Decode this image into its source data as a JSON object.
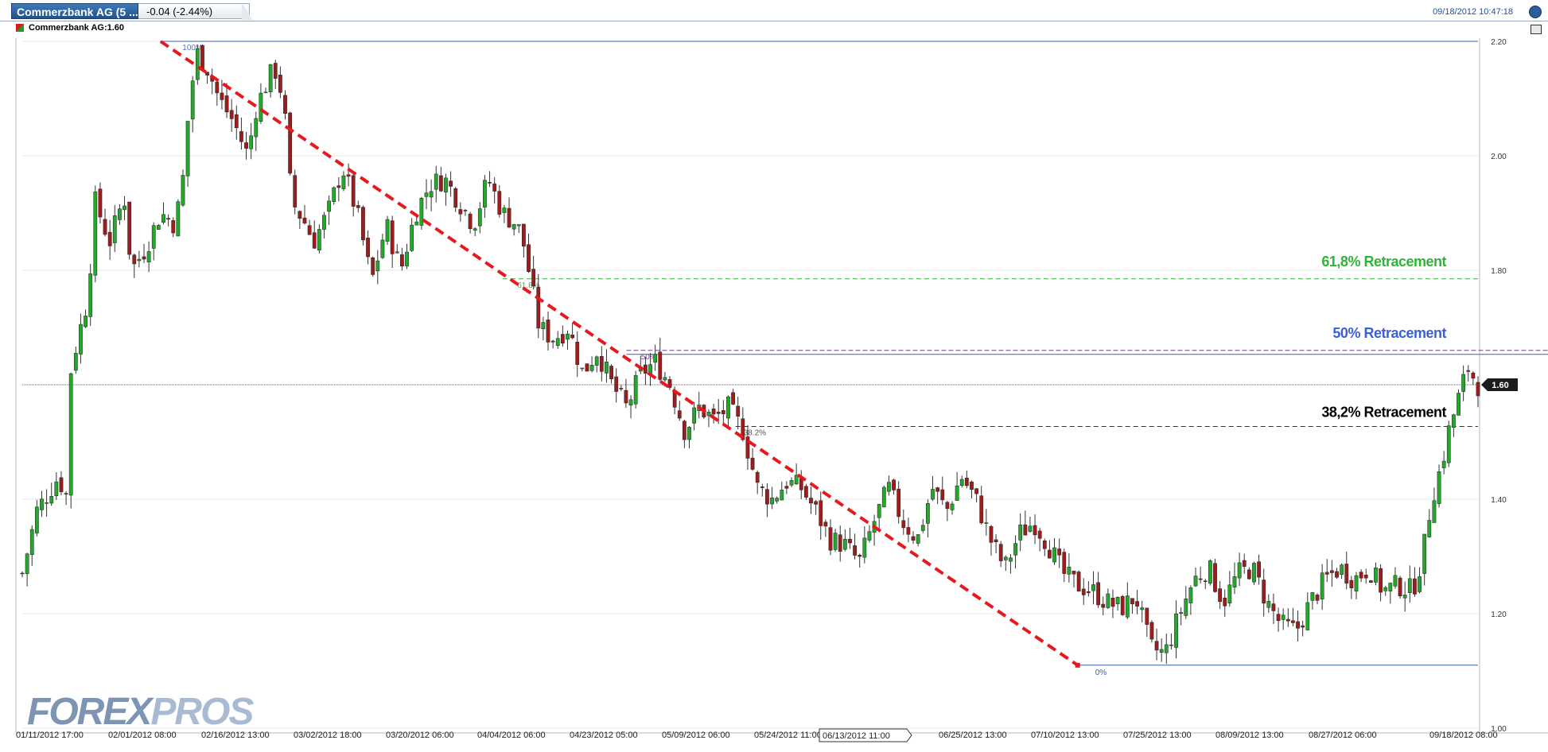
{
  "header": {
    "tab_title": "Commerzbank AG (5 ...",
    "change": "-0.04 (-2.44%)",
    "timestamp": "09/18/2012 10:47:18",
    "legend": "Commerzbank AG:1.60"
  },
  "watermark": {
    "part1": "FOREX",
    "part2": "PROS"
  },
  "colors": {
    "up": "#22a82a",
    "down": "#9e1c1c",
    "trendline": "#e8191e",
    "fib_618": "#2fb43a",
    "fib_50": "#3b5fd9",
    "fib_382": "#000000"
  },
  "chart_data": {
    "type": "candlestick",
    "title": "",
    "ylim": [
      1.0,
      2.2
    ],
    "yticks": [
      1.0,
      1.2,
      1.4,
      1.6,
      1.8,
      2.0,
      2.2
    ],
    "ytick_labels": [
      "1.00",
      "1.20",
      "1.40",
      "1.60",
      "1.80",
      "2.00",
      "2.20"
    ],
    "xtick_labels": [
      "01/11/2012 17:00",
      "02/01/2012 08:00",
      "02/16/2012 13:00",
      "03/02/2012 18:00",
      "03/20/2012 06:00",
      "04/04/2012 06:00",
      "04/23/2012 05:00",
      "05/09/2012 06:00",
      "05/24/2012 11:00",
      "06/13/2012 11:00",
      "06/25/2012 13:00",
      "07/10/2012 13:00",
      "07/25/2012 13:00",
      "08/09/2012 13:00",
      "08/27/2012 06:00",
      "09/18/2012 08:00"
    ],
    "crosshair_x_label": "06/13/2012 11:00",
    "last_price": 1.6,
    "last_price_label": "1.60",
    "close_path": [
      {
        "t": 0.0,
        "v": 1.27
      },
      {
        "t": 0.01,
        "v": 1.38
      },
      {
        "t": 0.025,
        "v": 1.44
      },
      {
        "t": 0.03,
        "v": 1.4
      },
      {
        "t": 0.033,
        "v": 1.62
      },
      {
        "t": 0.038,
        "v": 1.68
      },
      {
        "t": 0.045,
        "v": 1.75
      },
      {
        "t": 0.05,
        "v": 1.92
      },
      {
        "t": 0.06,
        "v": 1.85
      },
      {
        "t": 0.07,
        "v": 1.93
      },
      {
        "t": 0.075,
        "v": 1.8
      },
      {
        "t": 0.085,
        "v": 1.84
      },
      {
        "t": 0.095,
        "v": 1.9
      },
      {
        "t": 0.105,
        "v": 1.88
      },
      {
        "t": 0.11,
        "v": 1.95
      },
      {
        "t": 0.115,
        "v": 2.1
      },
      {
        "t": 0.12,
        "v": 2.18
      },
      {
        "t": 0.128,
        "v": 2.15
      },
      {
        "t": 0.135,
        "v": 2.1
      },
      {
        "t": 0.145,
        "v": 2.06
      },
      {
        "t": 0.155,
        "v": 2.0
      },
      {
        "t": 0.16,
        "v": 2.08
      },
      {
        "t": 0.17,
        "v": 2.14
      },
      {
        "t": 0.175,
        "v": 2.15
      },
      {
        "t": 0.18,
        "v": 2.08
      },
      {
        "t": 0.185,
        "v": 1.92
      },
      {
        "t": 0.195,
        "v": 1.88
      },
      {
        "t": 0.2,
        "v": 1.85
      },
      {
        "t": 0.21,
        "v": 1.9
      },
      {
        "t": 0.22,
        "v": 1.98
      },
      {
        "t": 0.23,
        "v": 1.9
      },
      {
        "t": 0.24,
        "v": 1.78
      },
      {
        "t": 0.25,
        "v": 1.88
      },
      {
        "t": 0.26,
        "v": 1.8
      },
      {
        "t": 0.27,
        "v": 1.9
      },
      {
        "t": 0.28,
        "v": 1.95
      },
      {
        "t": 0.29,
        "v": 1.96
      },
      {
        "t": 0.3,
        "v": 1.92
      },
      {
        "t": 0.31,
        "v": 1.88
      },
      {
        "t": 0.32,
        "v": 1.96
      },
      {
        "t": 0.33,
        "v": 1.9
      },
      {
        "t": 0.34,
        "v": 1.88
      },
      {
        "t": 0.345,
        "v": 1.84
      },
      {
        "t": 0.355,
        "v": 1.7
      },
      {
        "t": 0.365,
        "v": 1.68
      },
      {
        "t": 0.375,
        "v": 1.7
      },
      {
        "t": 0.385,
        "v": 1.62
      },
      {
        "t": 0.395,
        "v": 1.66
      },
      {
        "t": 0.405,
        "v": 1.6
      },
      {
        "t": 0.415,
        "v": 1.56
      },
      {
        "t": 0.425,
        "v": 1.62
      },
      {
        "t": 0.435,
        "v": 1.64
      },
      {
        "t": 0.445,
        "v": 1.6
      },
      {
        "t": 0.455,
        "v": 1.52
      },
      {
        "t": 0.465,
        "v": 1.56
      },
      {
        "t": 0.475,
        "v": 1.54
      },
      {
        "t": 0.485,
        "v": 1.56
      },
      {
        "t": 0.495,
        "v": 1.52
      },
      {
        "t": 0.505,
        "v": 1.42
      },
      {
        "t": 0.515,
        "v": 1.4
      },
      {
        "t": 0.525,
        "v": 1.43
      },
      {
        "t": 0.535,
        "v": 1.42
      },
      {
        "t": 0.545,
        "v": 1.38
      },
      {
        "t": 0.555,
        "v": 1.33
      },
      {
        "t": 0.565,
        "v": 1.32
      },
      {
        "t": 0.575,
        "v": 1.29
      },
      {
        "t": 0.585,
        "v": 1.36
      },
      {
        "t": 0.595,
        "v": 1.42
      },
      {
        "t": 0.605,
        "v": 1.36
      },
      {
        "t": 0.615,
        "v": 1.33
      },
      {
        "t": 0.625,
        "v": 1.42
      },
      {
        "t": 0.635,
        "v": 1.38
      },
      {
        "t": 0.645,
        "v": 1.44
      },
      {
        "t": 0.655,
        "v": 1.4
      },
      {
        "t": 0.665,
        "v": 1.33
      },
      {
        "t": 0.675,
        "v": 1.28
      },
      {
        "t": 0.685,
        "v": 1.34
      },
      {
        "t": 0.695,
        "v": 1.36
      },
      {
        "t": 0.705,
        "v": 1.32
      },
      {
        "t": 0.715,
        "v": 1.27
      },
      {
        "t": 0.725,
        "v": 1.25
      },
      {
        "t": 0.735,
        "v": 1.24
      },
      {
        "t": 0.745,
        "v": 1.22
      },
      {
        "t": 0.755,
        "v": 1.21
      },
      {
        "t": 0.765,
        "v": 1.23
      },
      {
        "t": 0.775,
        "v": 1.14
      },
      {
        "t": 0.785,
        "v": 1.13
      },
      {
        "t": 0.795,
        "v": 1.2
      },
      {
        "t": 0.805,
        "v": 1.26
      },
      {
        "t": 0.815,
        "v": 1.28
      },
      {
        "t": 0.825,
        "v": 1.22
      },
      {
        "t": 0.835,
        "v": 1.27
      },
      {
        "t": 0.845,
        "v": 1.28
      },
      {
        "t": 0.855,
        "v": 1.22
      },
      {
        "t": 0.865,
        "v": 1.18
      },
      {
        "t": 0.875,
        "v": 1.17
      },
      {
        "t": 0.885,
        "v": 1.22
      },
      {
        "t": 0.895,
        "v": 1.26
      },
      {
        "t": 0.905,
        "v": 1.28
      },
      {
        "t": 0.915,
        "v": 1.26
      },
      {
        "t": 0.925,
        "v": 1.28
      },
      {
        "t": 0.935,
        "v": 1.24
      },
      {
        "t": 0.945,
        "v": 1.25
      },
      {
        "t": 0.955,
        "v": 1.24
      },
      {
        "t": 0.962,
        "v": 1.3
      },
      {
        "t": 0.968,
        "v": 1.4
      },
      {
        "t": 0.975,
        "v": 1.46
      },
      {
        "t": 0.98,
        "v": 1.52
      },
      {
        "t": 0.987,
        "v": 1.58
      },
      {
        "t": 0.993,
        "v": 1.63
      },
      {
        "t": 1.0,
        "v": 1.6
      }
    ],
    "candles_count": 300,
    "trendline": {
      "start": {
        "t": 0.095,
        "v": 2.2
      },
      "end": {
        "t": 0.725,
        "v": 1.11
      }
    },
    "fibonacci": [
      {
        "level": "100%",
        "value": 2.2
      },
      {
        "level": "61.8%",
        "value": 1.785
      },
      {
        "level": "50%",
        "value": 1.66
      },
      {
        "level": "38.2%",
        "value": 1.527
      },
      {
        "level": "0%",
        "value": 1.11
      }
    ],
    "annotations": [
      {
        "text": "61,8% Retracement",
        "value": 1.785,
        "color": "#2fb43a"
      },
      {
        "text": "50% Retracement",
        "value": 1.66,
        "color": "#3b5fd9"
      },
      {
        "text": "38,2% Retracement",
        "value": 1.527,
        "color": "#000000"
      }
    ]
  }
}
